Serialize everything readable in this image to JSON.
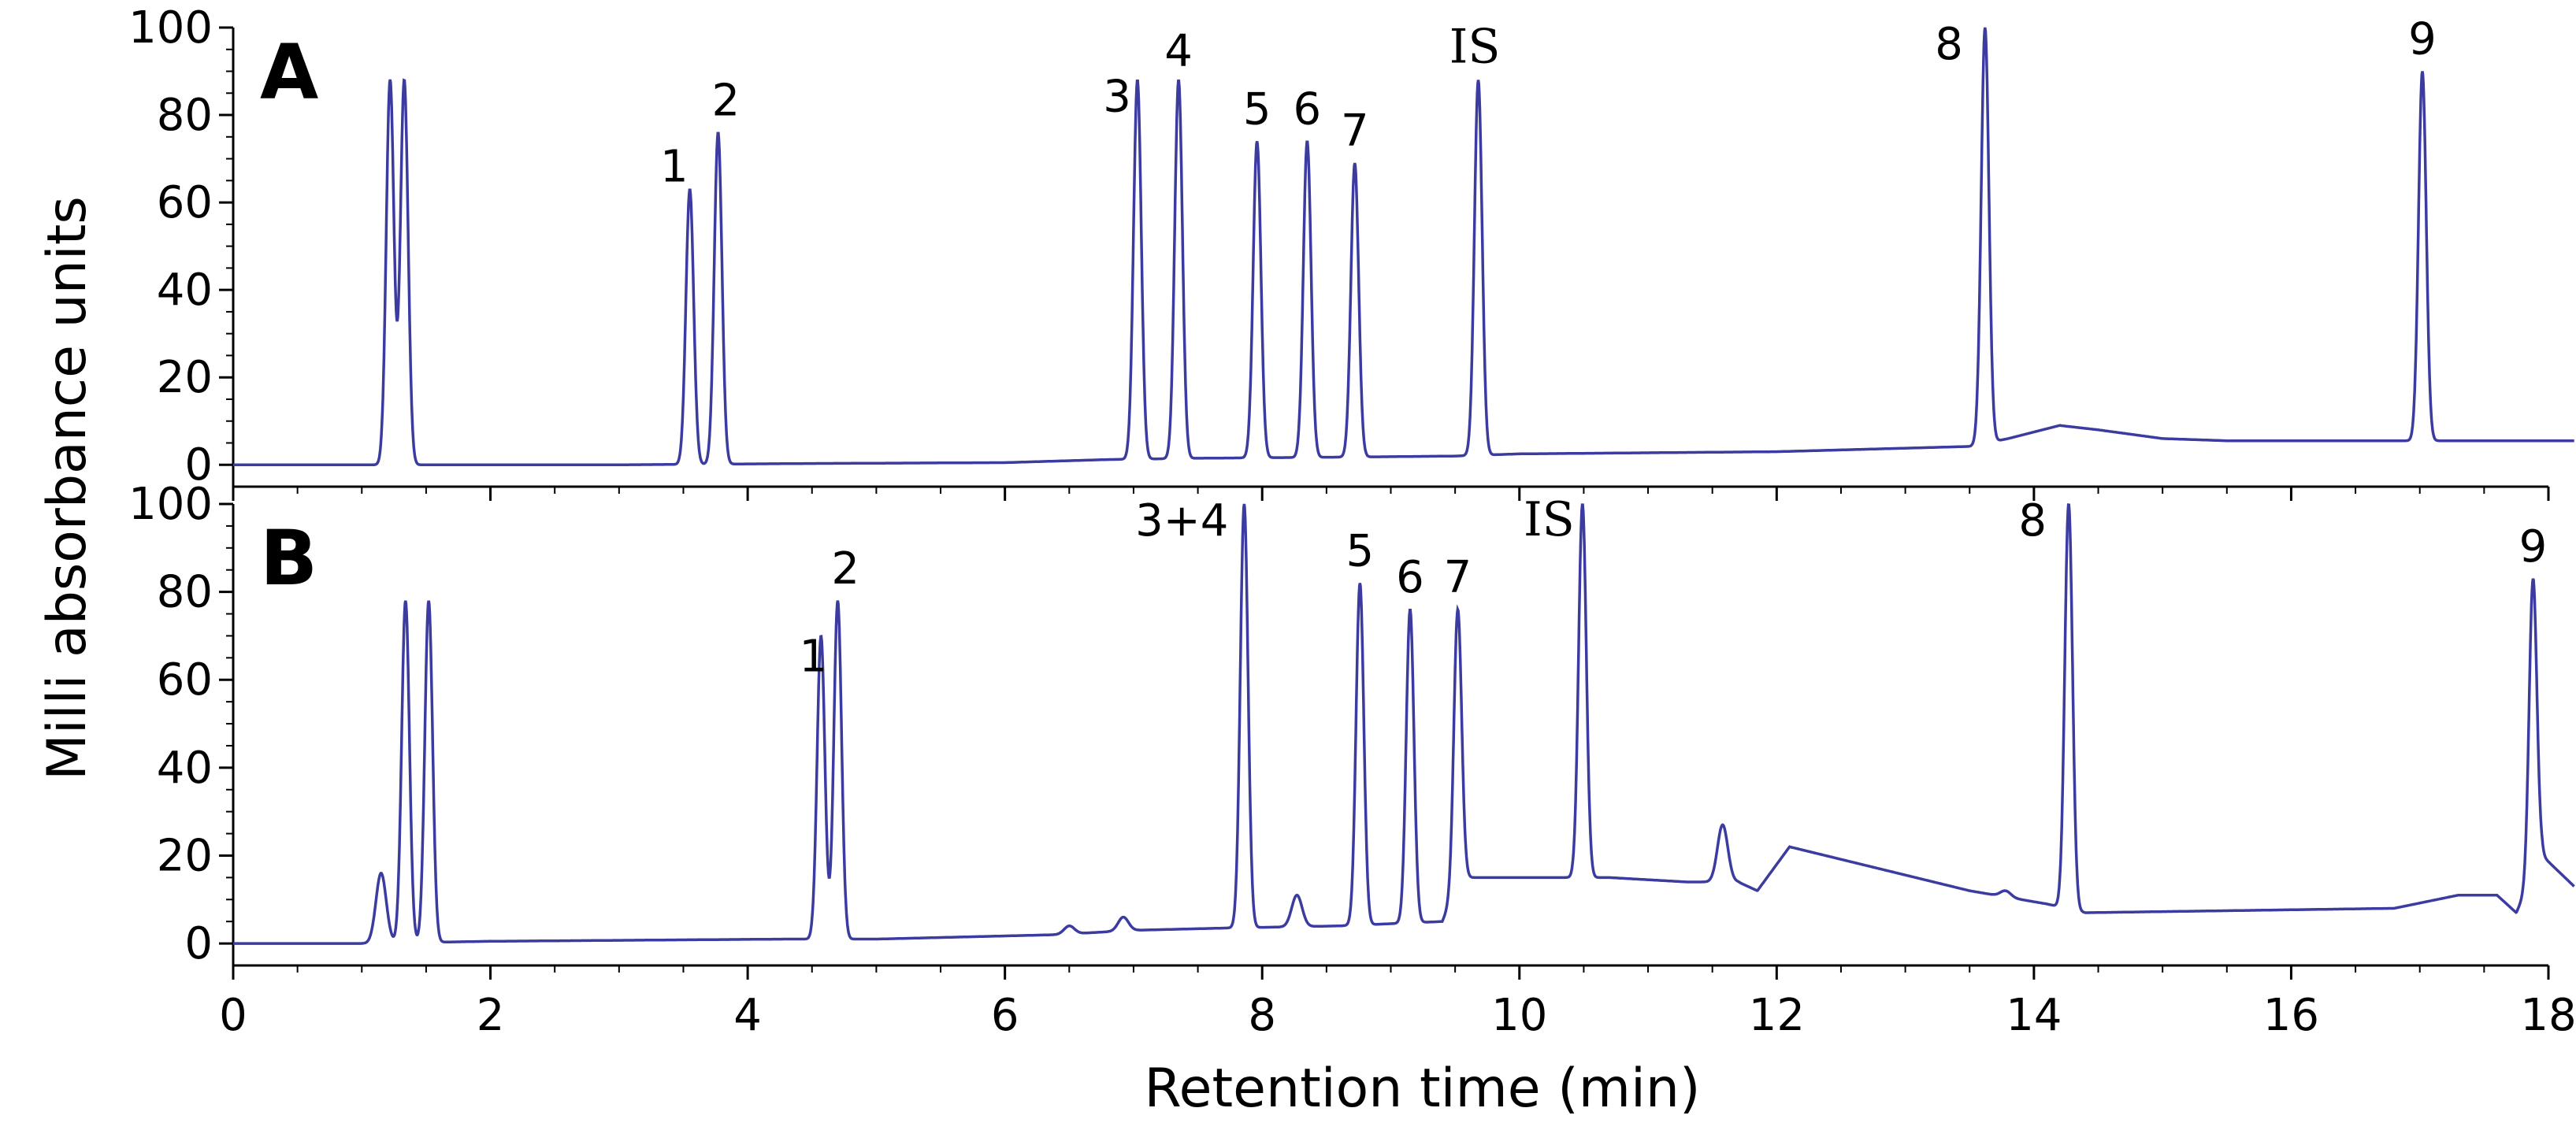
{
  "chart_data": [
    {
      "panel": "A",
      "type": "line",
      "xlabel": "Retention time (min)",
      "ylabel": "Milli absorbance units",
      "xlim": [
        0,
        18
      ],
      "ylim": [
        -5,
        100
      ],
      "xticks": [
        "0",
        "2",
        "4",
        "6",
        "8",
        "10",
        "12",
        "14",
        "16",
        "18"
      ],
      "yticks": [
        "0",
        "20",
        "40",
        "60",
        "80",
        "100"
      ],
      "grid": false,
      "line_color": "#3b3ba0",
      "baseline": [
        [
          0,
          0
        ],
        [
          1,
          0
        ],
        [
          3,
          0
        ],
        [
          4.5,
          0.3
        ],
        [
          6,
          0.5
        ],
        [
          6.8,
          1.2
        ],
        [
          7.5,
          1.5
        ],
        [
          8.8,
          1.8
        ],
        [
          9.5,
          2
        ],
        [
          10,
          2.5
        ],
        [
          12,
          3
        ],
        [
          13.5,
          4.2
        ],
        [
          13.8,
          6
        ],
        [
          14.2,
          9
        ],
        [
          14.5,
          8
        ],
        [
          15,
          6
        ],
        [
          15.5,
          5.5
        ],
        [
          16.9,
          5.5
        ],
        [
          17.2,
          5.5
        ],
        [
          18.2,
          5.5
        ]
      ],
      "peaks": [
        {
          "label": "",
          "x": 1.22,
          "y": 88
        },
        {
          "label": "",
          "x": 1.33,
          "y": 88
        },
        {
          "label": "1",
          "x": 3.55,
          "y": 63
        },
        {
          "label": "2",
          "x": 3.77,
          "y": 76
        },
        {
          "label": "3",
          "x": 7.03,
          "y": 88
        },
        {
          "label": "4",
          "x": 7.35,
          "y": 88
        },
        {
          "label": "5",
          "x": 7.96,
          "y": 74
        },
        {
          "label": "6",
          "x": 8.35,
          "y": 74
        },
        {
          "label": "7",
          "x": 8.72,
          "y": 69
        },
        {
          "label": "IS",
          "x": 9.68,
          "y": 88
        },
        {
          "label": "8",
          "x": 13.62,
          "y": 100
        },
        {
          "label": "9",
          "x": 17.02,
          "y": 90
        }
      ]
    },
    {
      "panel": "B",
      "type": "line",
      "xlabel": "Retention time (min)",
      "ylabel": "Milli absorbance units",
      "xlim": [
        0,
        18
      ],
      "ylim": [
        -5,
        100
      ],
      "xticks": [
        "0",
        "2",
        "4",
        "6",
        "8",
        "10",
        "12",
        "14",
        "16",
        "18"
      ],
      "yticks": [
        "0",
        "20",
        "40",
        "60",
        "80",
        "100"
      ],
      "grid": false,
      "line_color": "#3b3ba0",
      "baseline": [
        [
          0,
          0
        ],
        [
          1,
          0
        ],
        [
          2,
          0.5
        ],
        [
          4.3,
          1
        ],
        [
          5,
          1
        ],
        [
          6.4,
          2
        ],
        [
          7,
          3
        ],
        [
          7.7,
          3.5
        ],
        [
          8.6,
          4
        ],
        [
          9.4,
          5
        ],
        [
          9.55,
          15
        ],
        [
          10.3,
          15
        ],
        [
          10.7,
          15
        ],
        [
          11.3,
          14
        ],
        [
          11.7,
          14
        ],
        [
          11.85,
          12
        ],
        [
          12.1,
          22
        ],
        [
          13.5,
          12
        ],
        [
          14.1,
          9
        ],
        [
          14.4,
          7
        ],
        [
          16.8,
          8
        ],
        [
          17.3,
          11
        ],
        [
          17.6,
          11
        ],
        [
          17.75,
          7
        ],
        [
          17.95,
          20
        ],
        [
          18.2,
          13
        ]
      ],
      "peaks": [
        {
          "label": "",
          "x": 1.15,
          "y": 16
        },
        {
          "label": "",
          "x": 1.34,
          "y": 78
        },
        {
          "label": "",
          "x": 1.52,
          "y": 78
        },
        {
          "label": "1",
          "x": 4.57,
          "y": 70
        },
        {
          "label": "2",
          "x": 4.7,
          "y": 78
        },
        {
          "label": "",
          "x": 6.5,
          "y": 4
        },
        {
          "label": "",
          "x": 6.92,
          "y": 6
        },
        {
          "label": "3+4",
          "x": 7.86,
          "y": 100
        },
        {
          "label": "",
          "x": 8.27,
          "y": 11
        },
        {
          "label": "5",
          "x": 8.76,
          "y": 82
        },
        {
          "label": "6",
          "x": 9.15,
          "y": 76
        },
        {
          "label": "7",
          "x": 9.52,
          "y": 76
        },
        {
          "label": "IS",
          "x": 10.49,
          "y": 100
        },
        {
          "label": "",
          "x": 11.58,
          "y": 27
        },
        {
          "label": "",
          "x": 13.78,
          "y": 12
        },
        {
          "label": "8",
          "x": 14.27,
          "y": 100
        },
        {
          "label": "9",
          "x": 17.88,
          "y": 83
        }
      ]
    }
  ]
}
